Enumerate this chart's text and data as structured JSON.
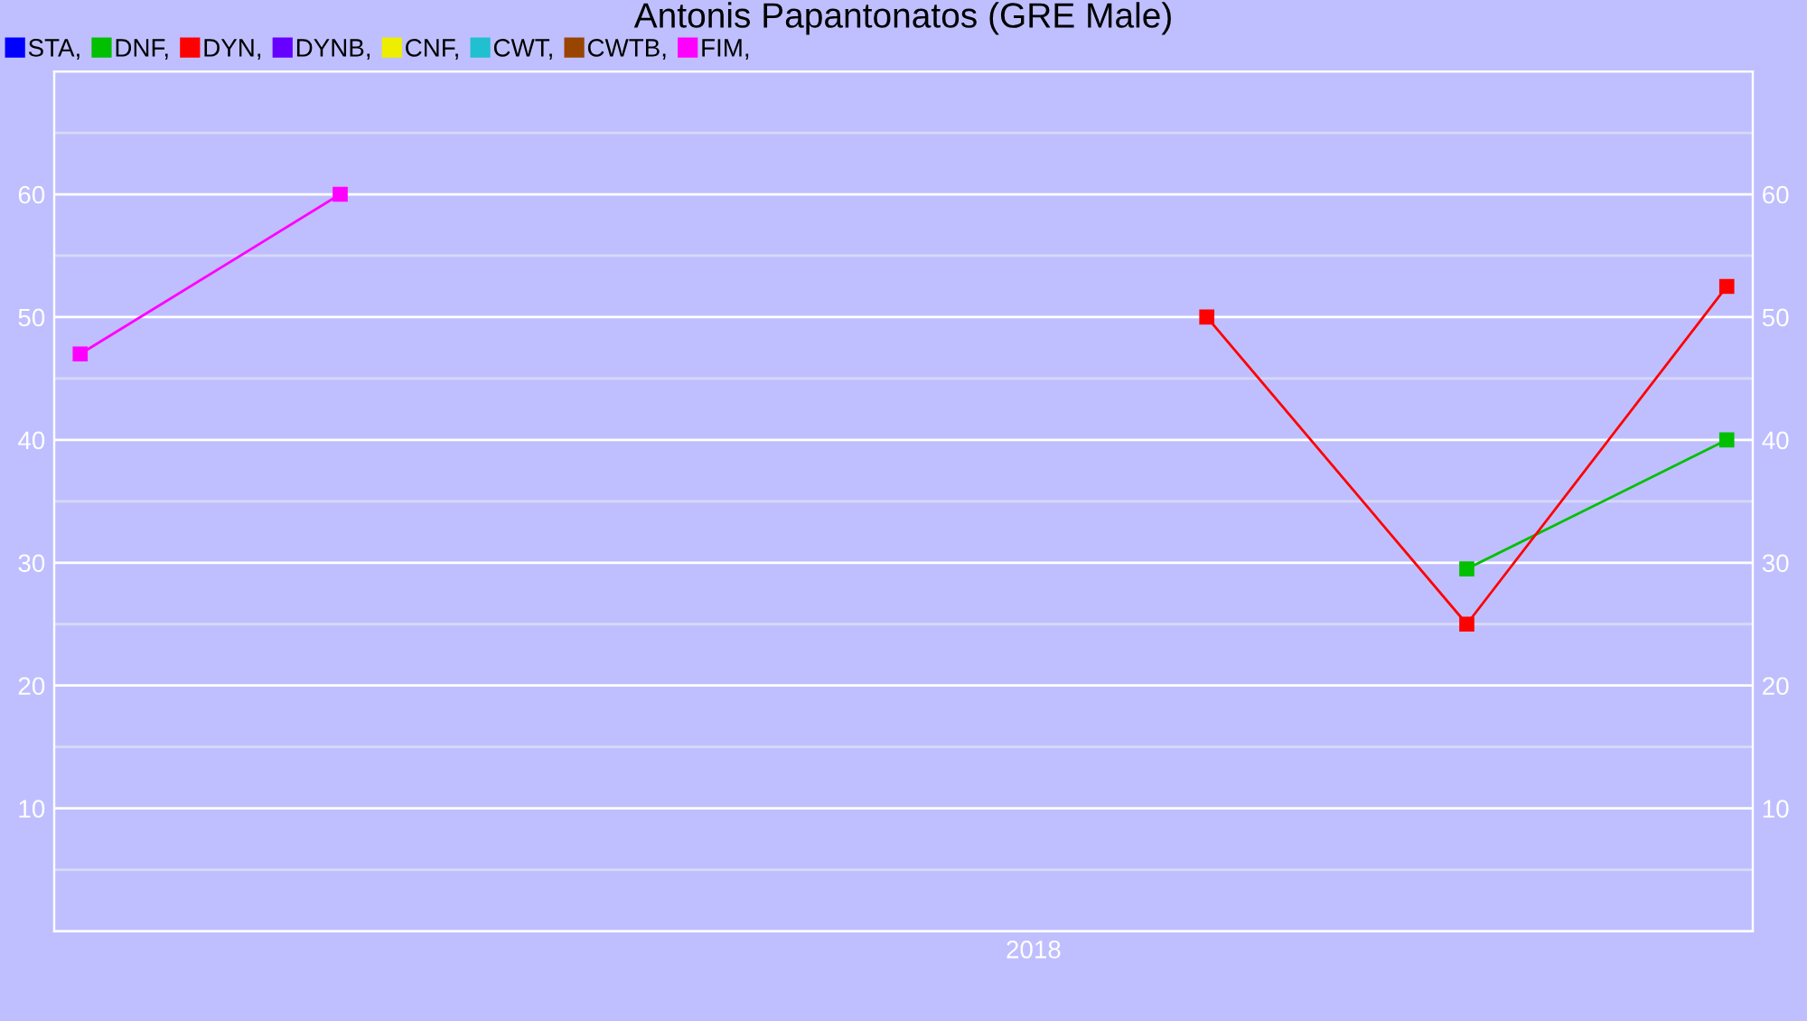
{
  "chart_data": {
    "type": "line",
    "title": "Antonis Papantonatos (GRE Male)",
    "categories": [
      null,
      null,
      null,
      null,
      null,
      null,
      null,
      null,
      null,
      null,
      null,
      "2018",
      null,
      null,
      null,
      null,
      null,
      null,
      null,
      null
    ],
    "series": [
      {
        "name": "STA,",
        "color": "#0000ff",
        "values": [
          null,
          null,
          null,
          null,
          null,
          null,
          null,
          null,
          null,
          null,
          null,
          null,
          null,
          null,
          null,
          null,
          null,
          null,
          null,
          null
        ]
      },
      {
        "name": "DNF,",
        "color": "#00c000",
        "values": [
          null,
          null,
          null,
          null,
          null,
          null,
          null,
          null,
          null,
          null,
          null,
          null,
          null,
          null,
          null,
          null,
          29.5,
          null,
          null,
          40
        ]
      },
      {
        "name": "DYN,",
        "color": "#ff0000",
        "values": [
          null,
          null,
          null,
          null,
          null,
          null,
          null,
          null,
          null,
          null,
          null,
          null,
          null,
          50,
          null,
          null,
          25,
          null,
          null,
          52.5
        ]
      },
      {
        "name": "DYNB,",
        "color": "#6600ff",
        "values": [
          null,
          null,
          null,
          null,
          null,
          null,
          null,
          null,
          null,
          null,
          null,
          null,
          null,
          null,
          null,
          null,
          null,
          null,
          null,
          null
        ]
      },
      {
        "name": "CNF,",
        "color": "#eeee00",
        "values": [
          null,
          null,
          null,
          null,
          null,
          null,
          null,
          null,
          null,
          null,
          null,
          null,
          null,
          null,
          null,
          null,
          null,
          null,
          null,
          null
        ]
      },
      {
        "name": "CWT,",
        "color": "#20c0d0",
        "values": [
          null,
          null,
          null,
          null,
          null,
          null,
          null,
          null,
          null,
          null,
          null,
          null,
          null,
          null,
          null,
          null,
          null,
          null,
          null,
          null
        ]
      },
      {
        "name": "CWTB,",
        "color": "#994400",
        "values": [
          null,
          null,
          null,
          null,
          null,
          null,
          null,
          null,
          null,
          null,
          null,
          null,
          null,
          null,
          null,
          null,
          null,
          null,
          null,
          null
        ]
      },
      {
        "name": "FIM,",
        "color": "#ff00ff",
        "values": [
          47,
          null,
          null,
          60,
          null,
          null,
          null,
          null,
          null,
          null,
          null,
          null,
          null,
          null,
          null,
          null,
          null,
          null,
          null,
          null
        ]
      }
    ],
    "ylim": [
      0,
      70
    ],
    "yticks": [
      {
        "value": 5,
        "label": null
      },
      10,
      {
        "value": 15,
        "label": null
      },
      20,
      {
        "value": 25,
        "label": null
      },
      30,
      {
        "value": 35,
        "label": null
      },
      40,
      {
        "value": 45,
        "label": null
      },
      50,
      {
        "value": 55,
        "label": null
      },
      60,
      {
        "value": 65,
        "label": null
      }
    ],
    "y2lim": [
      0,
      70
    ],
    "y2ticks": [
      {
        "value": 5,
        "label": null
      },
      10,
      {
        "value": 15,
        "label": null
      },
      20,
      {
        "value": 25,
        "label": null
      },
      30,
      {
        "value": 35,
        "label": null
      },
      40,
      {
        "value": 45,
        "label": null
      },
      50,
      {
        "value": 55,
        "label": null
      },
      60,
      {
        "value": 65,
        "label": null
      }
    ],
    "grid": "y",
    "legend": "top left",
    "marker": "square",
    "line_style": "solid"
  }
}
